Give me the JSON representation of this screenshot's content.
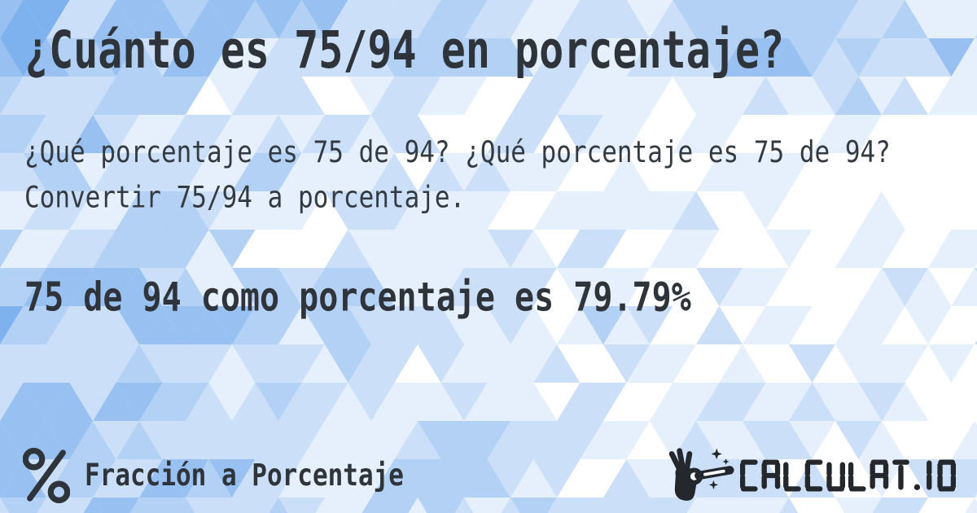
{
  "card": {
    "title": "¿Cuánto es 75/94 en porcentaje?",
    "description": "¿Qué porcentaje es 75 de 94? ¿Qué porcentaje es 75 de 94? Convertir 75/94 a porcentaje.",
    "answer": "75 de 94 como porcentaje es 79.79%"
  },
  "footer": {
    "category_icon": "percent-icon",
    "category_label": "Fracción a Porcentaje",
    "brand": {
      "icon": "magic-wand-hand-icon",
      "name": "CALCULAT.IO"
    }
  },
  "colors": {
    "text": "#2e343a",
    "logo": "#24282d",
    "background_blue": "#7eb2ee",
    "background_white": "#ffffff"
  }
}
